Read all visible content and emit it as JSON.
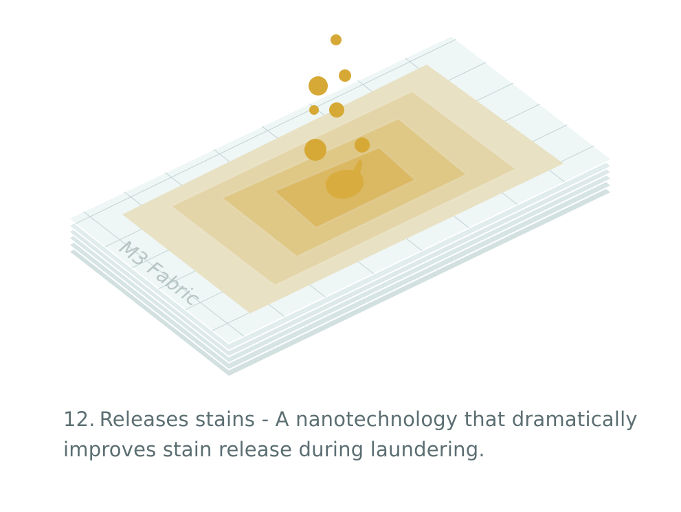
{
  "fabric_label": "M3 Fabric",
  "caption": {
    "number": "12.",
    "line1": "Releases stains - A nanotechnology that dramatically",
    "line2": "improves stain release during laundering."
  },
  "colors": {
    "layer_face": "#eef6f6",
    "layer_edge": "#c9dcdb",
    "stain_outer": "#e7dfc0",
    "stain_core": "#d7ac46",
    "droplet": "#d6a835",
    "caption_text": "#5b6e72"
  }
}
